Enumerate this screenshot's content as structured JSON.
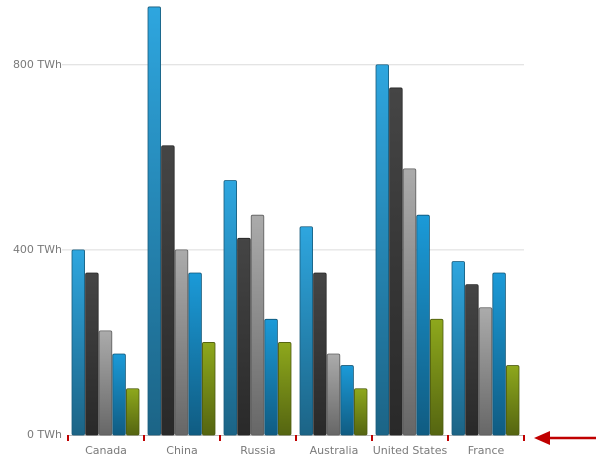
{
  "chart_data": {
    "type": "bar",
    "categories": [
      "Canada",
      "China",
      "Russia",
      "Australia",
      "United States",
      "France"
    ],
    "series": [
      {
        "color": "#2ea6df",
        "values": [
          400,
          925,
          550,
          450,
          800,
          375
        ]
      },
      {
        "color": "#454545",
        "values": [
          350,
          625,
          425,
          350,
          750,
          325
        ]
      },
      {
        "color": "#ababab",
        "values": [
          225,
          400,
          475,
          175,
          575,
          275
        ]
      },
      {
        "color": "#1b9ad8",
        "values": [
          175,
          350,
          250,
          150,
          475,
          350
        ]
      },
      {
        "color": "#8ea81c",
        "values": [
          100,
          200,
          200,
          100,
          250,
          150
        ]
      }
    ],
    "ylim": [
      0,
      940
    ],
    "yticks": [
      {
        "value": 0,
        "label": "0 TWh"
      },
      {
        "value": 400,
        "label": "400 TWh"
      },
      {
        "value": 800,
        "label": "800 TWh"
      }
    ],
    "grid": true
  }
}
